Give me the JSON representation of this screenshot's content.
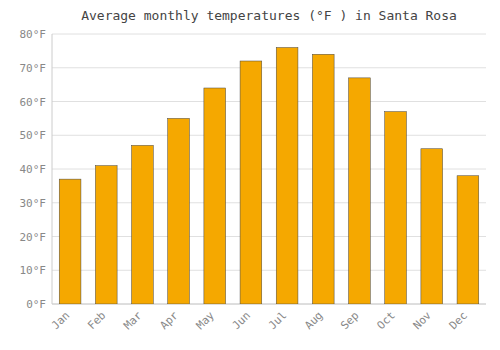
{
  "chart_data": {
    "type": "bar",
    "title": "Average monthly temperatures (°F ) in Santa Rosa",
    "categories": [
      "Jan",
      "Feb",
      "Mar",
      "Apr",
      "May",
      "Jun",
      "Jul",
      "Aug",
      "Sep",
      "Oct",
      "Nov",
      "Dec"
    ],
    "values": [
      37,
      41,
      47,
      55,
      64,
      72,
      76,
      74,
      67,
      57,
      46,
      38
    ],
    "color": "#F5A800",
    "ylim": [
      0,
      80
    ],
    "yticks": [
      {
        "value": 0,
        "label": "0°F"
      },
      {
        "value": 10,
        "label": "10°F"
      },
      {
        "value": 20,
        "label": "20°F"
      },
      {
        "value": 30,
        "label": "30°F"
      },
      {
        "value": 40,
        "label": "40°F"
      },
      {
        "value": 50,
        "label": "50°F"
      },
      {
        "value": 60,
        "label": "60°F"
      },
      {
        "value": 70,
        "label": "70°F"
      },
      {
        "value": 80,
        "label": "80°F"
      }
    ],
    "grid": true
  }
}
